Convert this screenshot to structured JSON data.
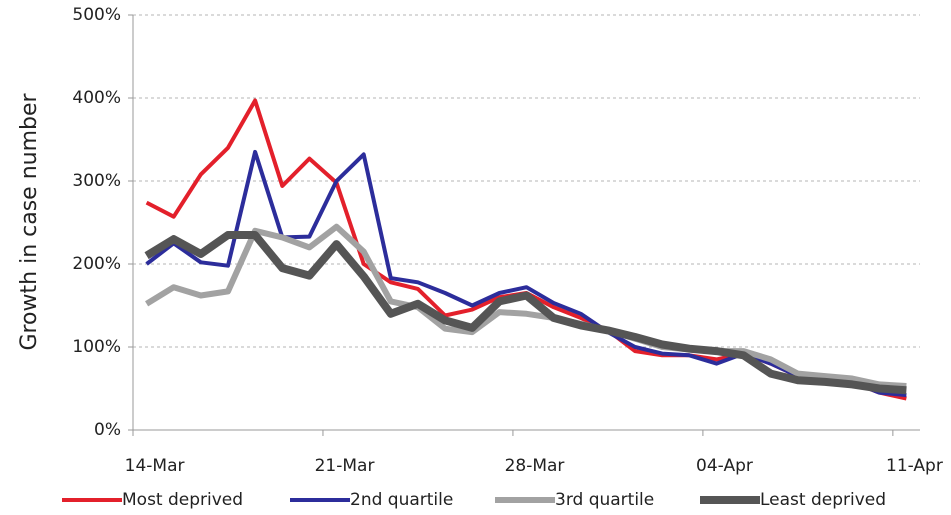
{
  "chart_data": {
    "type": "line",
    "y_label": "Growth in case number",
    "categories": [
      "14-Mar",
      null,
      null,
      null,
      null,
      null,
      null,
      "21-Mar",
      null,
      null,
      null,
      null,
      null,
      null,
      "28-Mar",
      null,
      null,
      null,
      null,
      null,
      null,
      "04-Apr",
      null,
      null,
      null,
      null,
      null,
      null,
      "11-Apr"
    ],
    "series": [
      {
        "name": "Most deprived",
        "color": "#e3202b",
        "width": 4,
        "values": [
          274,
          257,
          308,
          340,
          397,
          294,
          327,
          298,
          200,
          178,
          170,
          138,
          145,
          160,
          165,
          148,
          135,
          120,
          95,
          90,
          90,
          85,
          92,
          80,
          65,
          60,
          58,
          45,
          38
        ]
      },
      {
        "name": "2nd quartile",
        "color": "#2c2d9b",
        "width": 4,
        "values": [
          200,
          225,
          202,
          198,
          335,
          232,
          233,
          300,
          332,
          183,
          178,
          165,
          150,
          165,
          172,
          153,
          140,
          118,
          100,
          92,
          90,
          80,
          92,
          80,
          65,
          60,
          58,
          45,
          42
        ]
      },
      {
        "name": "3rd quartile",
        "color": "#a2a2a2",
        "width": 6,
        "values": [
          152,
          172,
          162,
          167,
          240,
          232,
          220,
          245,
          215,
          155,
          148,
          122,
          118,
          142,
          140,
          135,
          128,
          120,
          110,
          100,
          97,
          95,
          95,
          85,
          68,
          65,
          62,
          55,
          53
        ]
      },
      {
        "name": "Least deprived",
        "color": "#555555",
        "width": 8,
        "values": [
          210,
          230,
          212,
          235,
          235,
          195,
          186,
          224,
          185,
          140,
          152,
          132,
          123,
          155,
          162,
          135,
          126,
          120,
          112,
          103,
          98,
          95,
          90,
          68,
          60,
          58,
          55,
          50,
          48
        ]
      }
    ],
    "ylim": [
      0,
      500
    ],
    "yticks": [
      {
        "value": 0,
        "label": "0%"
      },
      {
        "value": 100,
        "label": "100%"
      },
      {
        "value": 200,
        "label": "200%"
      },
      {
        "value": 300,
        "label": "300%"
      },
      {
        "value": 400,
        "label": "400%"
      },
      {
        "value": 500,
        "label": "500%"
      }
    ],
    "grid": true,
    "legend": "bottom"
  }
}
